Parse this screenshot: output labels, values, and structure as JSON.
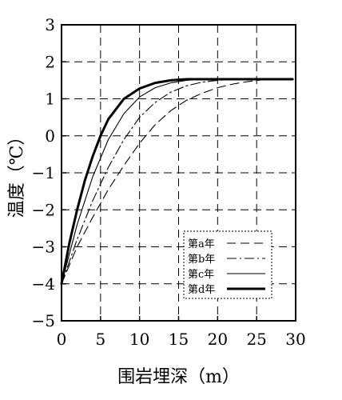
{
  "chart_data": {
    "type": "line",
    "xlabel": "围岩埋深（m）",
    "ylabel": "温度（℃）",
    "xlim": [
      0,
      30
    ],
    "ylim": [
      -5,
      3
    ],
    "xticks": [
      0,
      5,
      10,
      15,
      20,
      25,
      30
    ],
    "yticks": [
      -5,
      -4,
      -3,
      -2,
      -1,
      0,
      1,
      2,
      3
    ],
    "grid": true,
    "legend_position": "bottom-right",
    "series": [
      {
        "name": "第a年",
        "style": "dashed",
        "x": [
          0,
          2,
          4,
          6,
          8,
          10,
          12,
          14,
          16,
          18,
          20,
          22,
          24,
          26,
          28,
          29.6
        ],
        "y": [
          -4.0,
          -3.0,
          -2.2,
          -1.45,
          -0.8,
          -0.2,
          0.3,
          0.68,
          0.96,
          1.15,
          1.3,
          1.4,
          1.47,
          1.52,
          1.53,
          1.53
        ]
      },
      {
        "name": "第b年",
        "style": "dash-dot",
        "x": [
          0,
          2,
          4,
          6,
          8,
          10,
          12,
          14,
          16,
          18,
          20,
          22,
          24,
          26,
          28,
          29.6
        ],
        "y": [
          -4.0,
          -2.8,
          -1.75,
          -0.85,
          -0.1,
          0.5,
          0.9,
          1.18,
          1.35,
          1.45,
          1.5,
          1.52,
          1.53,
          1.53,
          1.53,
          1.53
        ]
      },
      {
        "name": "第c年",
        "style": "solid",
        "x": [
          0,
          2,
          4,
          6,
          8,
          10,
          12,
          14,
          16,
          18,
          20,
          22,
          24,
          26,
          28,
          29.6
        ],
        "y": [
          -4.0,
          -2.4,
          -1.1,
          -0.1,
          0.6,
          1.05,
          1.3,
          1.43,
          1.5,
          1.53,
          1.53,
          1.53,
          1.53,
          1.53,
          1.53,
          1.53
        ]
      },
      {
        "name": "第d年",
        "style": "thick",
        "x": [
          0,
          1,
          2,
          3,
          4,
          5,
          6,
          8,
          10,
          12,
          14,
          16,
          18,
          20,
          22,
          24,
          26,
          28,
          29.6
        ],
        "y": [
          -4.0,
          -2.9,
          -2.0,
          -1.2,
          -0.55,
          0.0,
          0.45,
          1.0,
          1.28,
          1.43,
          1.5,
          1.53,
          1.53,
          1.53,
          1.53,
          1.53,
          1.53,
          1.53,
          1.53
        ]
      }
    ]
  },
  "colors": {
    "line": "#000000",
    "grid": "#000000",
    "background": "#ffffff"
  }
}
